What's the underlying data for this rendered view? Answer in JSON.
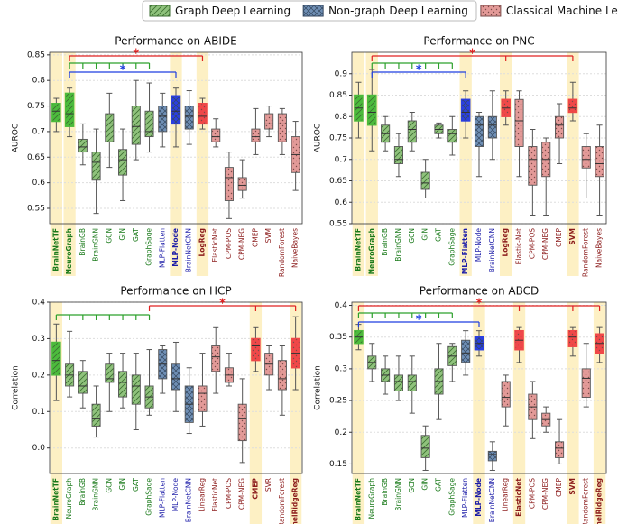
{
  "legend": [
    {
      "name": "Graph Deep Learning",
      "color": "#8fc27c",
      "highlight_color": "#4cbb3c",
      "edge": "#3b6e30",
      "label_color": "#1a7a1a"
    },
    {
      "name": "Non-graph Deep Learning",
      "color": "#6f8fb5",
      "highlight_color": "#2a3fe0",
      "edge": "#34475f",
      "label_color": "#1c1ca8"
    },
    {
      "name": "Classical Machine Learning",
      "color": "#e39a98",
      "highlight_color": "#f04848",
      "edge": "#7a4a48",
      "label_color": "#8b1a1a"
    }
  ],
  "chart_data": [
    {
      "type": "box",
      "title": "Performance on ABIDE",
      "ylabel": "AUROC",
      "ylim": [
        0.52,
        0.855
      ],
      "yticks": [
        0.55,
        0.6,
        0.65,
        0.7,
        0.75,
        0.8,
        0.85
      ],
      "grid": true,
      "series": [
        {
          "categories": [
            "BrainNetTF",
            "NeuroGraph",
            "BrainGB",
            "BrainGNN",
            "GCN",
            "GIN",
            "GAT",
            "GraphSage"
          ],
          "boxes": [
            [
              0.7,
              0.72,
              0.74,
              0.755,
              0.765
            ],
            [
              0.69,
              0.71,
              0.735,
              0.775,
              0.785
            ],
            [
              0.635,
              0.66,
              0.67,
              0.685,
              0.715
            ],
            [
              0.54,
              0.605,
              0.64,
              0.66,
              0.705
            ],
            [
              0.63,
              0.68,
              0.715,
              0.735,
              0.775
            ],
            [
              0.565,
              0.615,
              0.645,
              0.665,
              0.705
            ],
            [
              0.645,
              0.675,
              0.71,
              0.75,
              0.8
            ],
            [
              0.66,
              0.69,
              0.7,
              0.74,
              0.795
            ]
          ],
          "highlight": [
            0,
            1
          ]
        },
        {
          "categories": [
            "MLP-Flatten",
            "MLP-Node",
            "BrainNetCNN"
          ],
          "boxes": [
            [
              0.67,
              0.7,
              0.73,
              0.75,
              0.775
            ],
            [
              0.67,
              0.715,
              0.74,
              0.77,
              0.785
            ],
            [
              0.675,
              0.705,
              0.73,
              0.75,
              0.78
            ]
          ],
          "highlight": [
            1
          ]
        },
        {
          "categories": [
            "LogReg",
            "ElasticNet",
            "CPM-POS",
            "CPM-NEG",
            "CMEP",
            "SVM",
            "RandomForest",
            "NaiveBayes"
          ],
          "boxes": [
            [
              0.705,
              0.715,
              0.73,
              0.755,
              0.765
            ],
            [
              0.67,
              0.68,
              0.69,
              0.705,
              0.725
            ],
            [
              0.53,
              0.565,
              0.61,
              0.63,
              0.66
            ],
            [
              0.57,
              0.585,
              0.595,
              0.61,
              0.645
            ],
            [
              0.655,
              0.68,
              0.69,
              0.705,
              0.745
            ],
            [
              0.69,
              0.705,
              0.715,
              0.735,
              0.75
            ],
            [
              0.655,
              0.68,
              0.715,
              0.735,
              0.745
            ],
            [
              0.585,
              0.62,
              0.655,
              0.69,
              0.72
            ]
          ],
          "highlight": [
            0
          ]
        }
      ],
      "brackets": [
        {
          "color": "#2ca02c",
          "ref": 1,
          "targets": [
            2,
            3,
            4,
            5,
            6,
            7
          ]
        },
        {
          "color": "#1f3fe0",
          "ref": 1,
          "targets": [
            9
          ],
          "label": "*"
        },
        {
          "color": "#e02020",
          "ref": 1,
          "targets": [
            11
          ],
          "label": "*"
        }
      ]
    },
    {
      "type": "box",
      "title": "Performance on PNC",
      "ylabel": "AUROC",
      "ylim": [
        0.55,
        0.95
      ],
      "yticks": [
        0.55,
        0.6,
        0.65,
        0.7,
        0.75,
        0.8,
        0.85,
        0.9
      ],
      "grid": true,
      "series": [
        {
          "categories": [
            "BrainNetTF",
            "NeuroGraph",
            "BrainGB",
            "BrainGNN",
            "GCN",
            "GIN",
            "GAT",
            "GraphSage"
          ],
          "boxes": [
            [
              0.75,
              0.79,
              0.82,
              0.85,
              0.88
            ],
            [
              0.72,
              0.78,
              0.81,
              0.85,
              0.91
            ],
            [
              0.72,
              0.74,
              0.76,
              0.78,
              0.8
            ],
            [
              0.66,
              0.69,
              0.7,
              0.73,
              0.76
            ],
            [
              0.72,
              0.74,
              0.77,
              0.79,
              0.81
            ],
            [
              0.61,
              0.63,
              0.645,
              0.67,
              0.7
            ],
            [
              0.75,
              0.76,
              0.77,
              0.78,
              0.785
            ],
            [
              0.71,
              0.74,
              0.76,
              0.77,
              0.8
            ]
          ],
          "highlight": [
            0,
            1
          ]
        },
        {
          "categories": [
            "MLP-Flatten",
            "MLP-Node",
            "BrainNetCNN"
          ],
          "boxes": [
            [
              0.75,
              0.79,
              0.81,
              0.84,
              0.86
            ],
            [
              0.66,
              0.73,
              0.78,
              0.8,
              0.81
            ],
            [
              0.7,
              0.75,
              0.78,
              0.8,
              0.86
            ]
          ],
          "highlight": [
            0
          ]
        },
        {
          "categories": [
            "LogReg",
            "Elastic-Net",
            "CPM-POS",
            "CPM-NEG",
            "CMEP",
            "SVM",
            "RandomForest",
            "NaiveBayes"
          ],
          "boxes": [
            [
              0.78,
              0.8,
              0.82,
              0.84,
              0.86
            ],
            [
              0.66,
              0.73,
              0.79,
              0.84,
              0.86
            ],
            [
              0.57,
              0.64,
              0.7,
              0.73,
              0.77
            ],
            [
              0.57,
              0.66,
              0.7,
              0.74,
              0.75
            ],
            [
              0.69,
              0.75,
              0.78,
              0.8,
              0.83
            ],
            [
              0.79,
              0.81,
              0.82,
              0.84,
              0.88
            ],
            [
              0.61,
              0.68,
              0.7,
              0.73,
              0.76
            ],
            [
              0.57,
              0.66,
              0.69,
              0.73,
              0.78
            ]
          ],
          "highlight": [
            0,
            5
          ]
        }
      ],
      "brackets": [
        {
          "color": "#2ca02c",
          "ref": 1,
          "targets": [
            2,
            3,
            4,
            5,
            6,
            7
          ]
        },
        {
          "color": "#1f3fe0",
          "ref": 1,
          "targets": [
            8
          ],
          "label": "*"
        },
        {
          "color": "#e02020",
          "ref": 1,
          "targets": [
            11,
            16
          ],
          "label": "*"
        }
      ]
    },
    {
      "type": "box",
      "title": "Performance on HCP",
      "ylabel": "Correlation",
      "ylim": [
        -0.07,
        0.4
      ],
      "yticks": [
        {
          "value": 0,
          "label": "0.0"
        },
        0.1,
        0.2,
        0.3,
        0.4
      ],
      "grid": true,
      "series": [
        {
          "categories": [
            "BrainNetTF",
            "NeuroGraph",
            "BrainGB",
            "BrainGNN",
            "GCN",
            "GIN",
            "GAT",
            "GraphSage"
          ],
          "boxes": [
            [
              0.13,
              0.2,
              0.24,
              0.29,
              0.34
            ],
            [
              0.14,
              0.17,
              0.2,
              0.23,
              0.32
            ],
            [
              0.11,
              0.15,
              0.17,
              0.21,
              0.24
            ],
            [
              0.03,
              0.06,
              0.08,
              0.12,
              0.17
            ],
            [
              0.1,
              0.18,
              0.19,
              0.23,
              0.26
            ],
            [
              0.11,
              0.14,
              0.18,
              0.21,
              0.26
            ],
            [
              0.05,
              0.12,
              0.17,
              0.2,
              0.26
            ],
            [
              0.09,
              0.11,
              0.14,
              0.17,
              0.27
            ]
          ],
          "highlight": [
            0
          ]
        },
        {
          "categories": [
            "MLP-Flatten",
            "MLP-Node",
            "BrainNetCNN"
          ],
          "boxes": [
            [
              0.15,
              0.19,
              0.23,
              0.27,
              0.28
            ],
            [
              0.1,
              0.16,
              0.19,
              0.23,
              0.29
            ],
            [
              0.04,
              0.07,
              0.12,
              0.17,
              0.22
            ]
          ],
          "highlight": []
        },
        {
          "categories": [
            "LinearReg",
            "ElasticNet",
            "CPM-POS",
            "CPM-NEG",
            "CMEP",
            "SVR",
            "RandomForest",
            "KernelRidgeReg"
          ],
          "boxes": [
            [
              0.06,
              0.1,
              0.15,
              0.17,
              0.26
            ],
            [
              0.15,
              0.21,
              0.25,
              0.28,
              0.33
            ],
            [
              0.17,
              0.18,
              0.2,
              0.22,
              0.26
            ],
            [
              -0.04,
              0.02,
              0.08,
              0.12,
              0.19
            ],
            [
              0.21,
              0.24,
              0.28,
              0.3,
              0.33
            ],
            [
              0.16,
              0.2,
              0.23,
              0.26,
              0.28
            ],
            [
              0.09,
              0.16,
              0.19,
              0.24,
              0.28
            ],
            [
              0.16,
              0.22,
              0.26,
              0.3,
              0.36
            ]
          ],
          "highlight": [
            4,
            7
          ]
        }
      ],
      "brackets": [
        {
          "color": "#2ca02c",
          "ref": 0,
          "targets": [
            1,
            2,
            3,
            4,
            5,
            6,
            7
          ]
        },
        {
          "color": "#e02020",
          "ref": 7,
          "targets": [
            15,
            18
          ],
          "label": "*"
        }
      ]
    },
    {
      "type": "box",
      "title": "Performance on ABCD",
      "ylabel": "Correlation",
      "ylim": [
        0.135,
        0.405
      ],
      "yticks": [
        0.15,
        0.2,
        0.25,
        0.3,
        0.35,
        0.4
      ],
      "grid": true,
      "series": [
        {
          "categories": [
            "BrainNetTF",
            "NeuroGraph",
            "BrainGB",
            "BrainGNN",
            "GCN",
            "GIN",
            "GAT",
            "GraphSage"
          ],
          "boxes": [
            [
              0.33,
              0.34,
              0.35,
              0.36,
              0.37
            ],
            [
              0.28,
              0.3,
              0.31,
              0.32,
              0.34
            ],
            [
              0.26,
              0.28,
              0.29,
              0.3,
              0.32
            ],
            [
              0.25,
              0.265,
              0.28,
              0.29,
              0.32
            ],
            [
              0.23,
              0.265,
              0.28,
              0.29,
              0.32
            ],
            [
              0.14,
              0.16,
              0.175,
              0.195,
              0.21
            ],
            [
              0.22,
              0.26,
              0.28,
              0.3,
              0.34
            ],
            [
              0.28,
              0.305,
              0.32,
              0.335,
              0.34
            ]
          ],
          "highlight": [
            0
          ]
        },
        {
          "categories": [
            "MLP-Flatten",
            "MLP-Node",
            "BrainNetCNN"
          ],
          "boxes": [
            [
              0.29,
              0.31,
              0.325,
              0.345,
              0.36
            ],
            [
              0.32,
              0.33,
              0.34,
              0.35,
              0.36
            ],
            [
              0.14,
              0.155,
              0.165,
              0.17,
              0.185
            ]
          ],
          "highlight": [
            1
          ]
        },
        {
          "categories": [
            "LinearReg",
            "ElasticNet",
            "CPM-POS",
            "CPM-NEG",
            "CMEP",
            "SVM",
            "RandomForest",
            "KernelRidgeReg"
          ],
          "boxes": [
            [
              0.21,
              0.24,
              0.255,
              0.28,
              0.29
            ],
            [
              0.31,
              0.33,
              0.345,
              0.36,
              0.365
            ],
            [
              0.19,
              0.22,
              0.24,
              0.26,
              0.28
            ],
            [
              0.2,
              0.21,
              0.22,
              0.23,
              0.24
            ],
            [
              0.15,
              0.16,
              0.175,
              0.185,
              0.22
            ],
            [
              0.32,
              0.335,
              0.35,
              0.36,
              0.365
            ],
            [
              0.24,
              0.255,
              0.285,
              0.3,
              0.34
            ],
            [
              0.31,
              0.325,
              0.34,
              0.355,
              0.365
            ]
          ],
          "highlight": [
            1,
            5,
            7
          ]
        }
      ],
      "brackets": [
        {
          "color": "#2ca02c",
          "ref": 0,
          "targets": [
            1,
            2,
            3,
            4,
            5,
            6,
            7
          ]
        },
        {
          "color": "#1f3fe0",
          "ref": 0,
          "targets": [
            9
          ],
          "label": "*"
        },
        {
          "color": "#e02020",
          "ref": 0,
          "targets": [
            12,
            16,
            18
          ],
          "label": "*"
        }
      ]
    }
  ]
}
